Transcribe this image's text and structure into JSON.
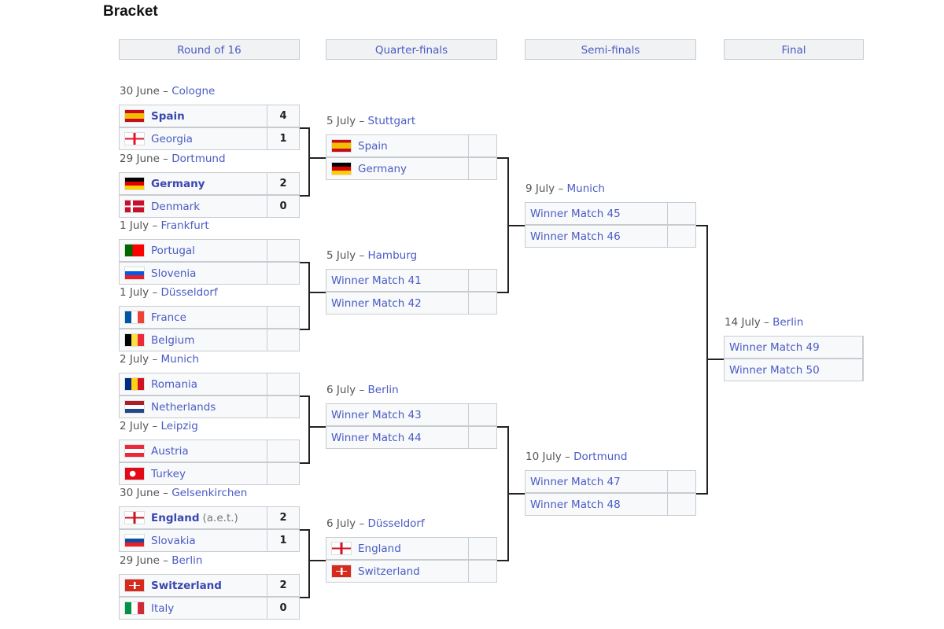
{
  "title": "Bracket",
  "rounds": [
    "Round of 16",
    "Quarter-finals",
    "Semi-finals",
    "Final"
  ],
  "r16": [
    {
      "date": "30 June",
      "venue": "Cologne",
      "teams": [
        {
          "name": "Spain",
          "flag": "spain",
          "score": "4",
          "winner": true
        },
        {
          "name": "Georgia",
          "flag": "georgia",
          "score": "1"
        }
      ]
    },
    {
      "date": "29 June",
      "venue": "Dortmund",
      "teams": [
        {
          "name": "Germany",
          "flag": "germany",
          "score": "2",
          "winner": true
        },
        {
          "name": "Denmark",
          "flag": "denmark",
          "score": "0"
        }
      ]
    },
    {
      "date": "1 July",
      "venue": "Frankfurt",
      "teams": [
        {
          "name": "Portugal",
          "flag": "portugal",
          "score": ""
        },
        {
          "name": "Slovenia",
          "flag": "slovenia",
          "score": ""
        }
      ]
    },
    {
      "date": "1 July",
      "venue": "Düsseldorf",
      "teams": [
        {
          "name": "France",
          "flag": "france",
          "score": ""
        },
        {
          "name": "Belgium",
          "flag": "belgium",
          "score": ""
        }
      ]
    },
    {
      "date": "2 July",
      "venue": "Munich",
      "teams": [
        {
          "name": "Romania",
          "flag": "romania",
          "score": ""
        },
        {
          "name": "Netherlands",
          "flag": "netherlands",
          "score": ""
        }
      ]
    },
    {
      "date": "2 July",
      "venue": "Leipzig",
      "teams": [
        {
          "name": "Austria",
          "flag": "austria",
          "score": ""
        },
        {
          "name": "Turkey",
          "flag": "turkey",
          "score": ""
        }
      ]
    },
    {
      "date": "30 June",
      "venue": "Gelsenkirchen",
      "teams": [
        {
          "name": "England",
          "note": "(a.e.t.)",
          "flag": "england",
          "score": "2",
          "winner": true
        },
        {
          "name": "Slovakia",
          "flag": "slovakia",
          "score": "1"
        }
      ]
    },
    {
      "date": "29 June",
      "venue": "Berlin",
      "teams": [
        {
          "name": "Switzerland",
          "flag": "switzerland",
          "score": "2",
          "winner": true
        },
        {
          "name": "Italy",
          "flag": "italy",
          "score": "0"
        }
      ]
    }
  ],
  "qf": [
    {
      "date": "5 July",
      "venue": "Stuttgart",
      "teams": [
        {
          "name": "Spain",
          "flag": "spain",
          "score": ""
        },
        {
          "name": "Germany",
          "flag": "germany",
          "score": ""
        }
      ]
    },
    {
      "date": "5 July",
      "venue": "Hamburg",
      "teams": [
        {
          "name": "Winner Match 41",
          "score": ""
        },
        {
          "name": "Winner Match 42",
          "score": ""
        }
      ]
    },
    {
      "date": "6 July",
      "venue": "Berlin",
      "teams": [
        {
          "name": "Winner Match 43",
          "score": ""
        },
        {
          "name": "Winner Match 44",
          "score": ""
        }
      ]
    },
    {
      "date": "6 July",
      "venue": "Düsseldorf",
      "teams": [
        {
          "name": "England",
          "flag": "england",
          "score": ""
        },
        {
          "name": "Switzerland",
          "flag": "switzerland",
          "score": ""
        }
      ]
    }
  ],
  "sf": [
    {
      "date": "9 July",
      "venue": "Munich",
      "teams": [
        {
          "name": "Winner Match 45",
          "score": ""
        },
        {
          "name": "Winner Match 46",
          "score": ""
        }
      ]
    },
    {
      "date": "10 July",
      "venue": "Dortmund",
      "teams": [
        {
          "name": "Winner Match 47",
          "score": ""
        },
        {
          "name": "Winner Match 48",
          "score": ""
        }
      ]
    }
  ],
  "final": [
    {
      "date": "14 July",
      "venue": "Berlin",
      "teams": [
        {
          "name": "Winner Match 49",
          "score": ""
        },
        {
          "name": "Winner Match 50",
          "score": ""
        }
      ]
    }
  ]
}
